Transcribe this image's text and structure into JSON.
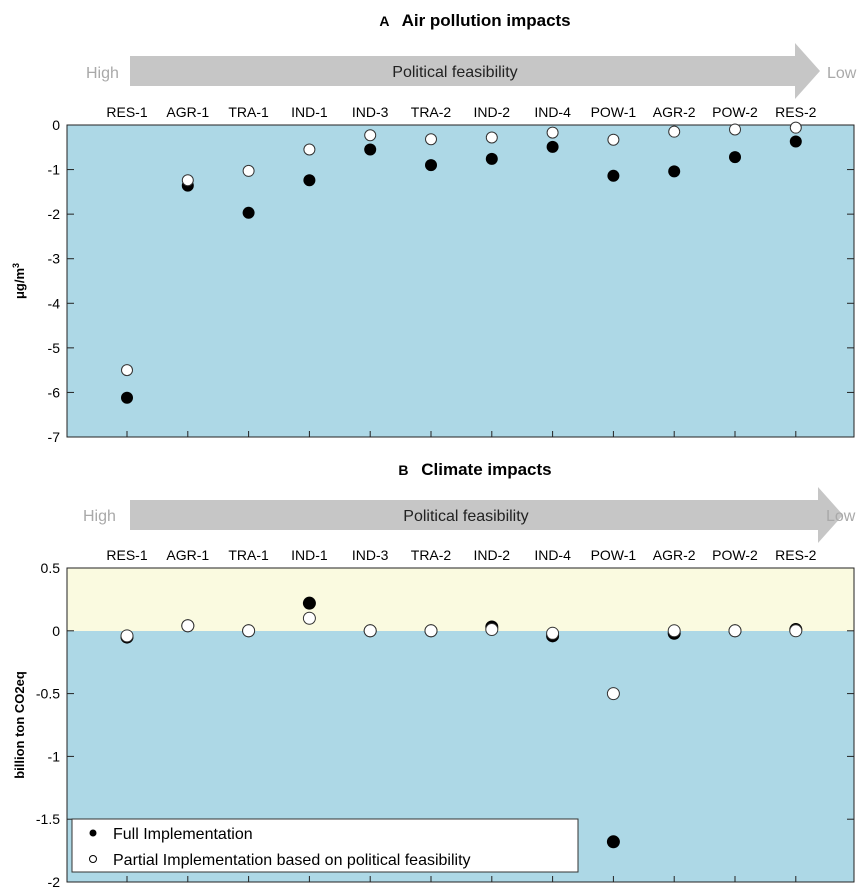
{
  "chart_data": [
    {
      "type": "scatter",
      "panel_letter": "A",
      "title": "Air pollution impacts",
      "ylabel": "μg/m³",
      "ylabel_parts": {
        "main": "μg/m",
        "sup": "3"
      },
      "ylim": [
        -7,
        0
      ],
      "yticks": [
        0,
        -1,
        -2,
        -3,
        -4,
        -5,
        -6,
        -7
      ],
      "ytick_labels": [
        "0",
        "-1",
        "-2",
        "-3",
        "-4",
        "-5",
        "-6",
        "-7"
      ],
      "arrow": {
        "label": "Political feasibility",
        "left": "High",
        "right": "Low"
      },
      "categories": [
        "RES-1",
        "AGR-1",
        "TRA-1",
        "IND-1",
        "IND-3",
        "TRA-2",
        "IND-2",
        "IND-4",
        "POW-1",
        "AGR-2",
        "POW-2",
        "RES-2"
      ],
      "background": "#add8e6",
      "series": [
        {
          "name": "Full Implementation",
          "marker": "filled",
          "values": [
            -6.12,
            -1.36,
            -1.97,
            -1.24,
            -0.55,
            -0.9,
            -0.76,
            -0.49,
            -1.14,
            -1.04,
            -0.72,
            -0.37
          ]
        },
        {
          "name": "Partial Implementation based on political feasibility",
          "marker": "open",
          "values": [
            -5.5,
            -1.24,
            -1.03,
            -0.55,
            -0.23,
            -0.32,
            -0.28,
            -0.17,
            -0.33,
            -0.15,
            -0.1,
            -0.06
          ]
        }
      ]
    },
    {
      "type": "scatter",
      "panel_letter": "B",
      "title": "Climate impacts",
      "ylabel": "billion ton CO2eq",
      "ylim": [
        -2,
        0.5
      ],
      "yticks": [
        0.5,
        0,
        -0.5,
        -1,
        -1.5,
        -2
      ],
      "ytick_labels": [
        "0.5",
        "0",
        "-0.5",
        "-1",
        "-1.5",
        "-2"
      ],
      "arrow": {
        "label": "Political feasibility",
        "left": "High",
        "right": "Low"
      },
      "categories": [
        "RES-1",
        "AGR-1",
        "TRA-1",
        "IND-1",
        "IND-3",
        "TRA-2",
        "IND-2",
        "IND-4",
        "POW-1",
        "AGR-2",
        "POW-2",
        "RES-2"
      ],
      "background": "#add8e6",
      "positive_region_color": "#fafae0",
      "legend_position": "bottom-left",
      "series": [
        {
          "name": "Full Implementation",
          "marker": "filled",
          "values": [
            -0.05,
            0.04,
            0.0,
            0.22,
            0.0,
            0.0,
            0.03,
            -0.04,
            -1.68,
            -0.02,
            0.0,
            0.01
          ]
        },
        {
          "name": "Partial Implementation based on political feasibility",
          "marker": "open",
          "values": [
            -0.04,
            0.04,
            0.0,
            0.1,
            0.0,
            0.0,
            0.01,
            -0.02,
            -0.5,
            0.0,
            0.0,
            0.0
          ]
        }
      ]
    }
  ],
  "legend": {
    "full_label": "Full Implementation",
    "partial_label": "Partial Implementation based on political feasibility"
  }
}
